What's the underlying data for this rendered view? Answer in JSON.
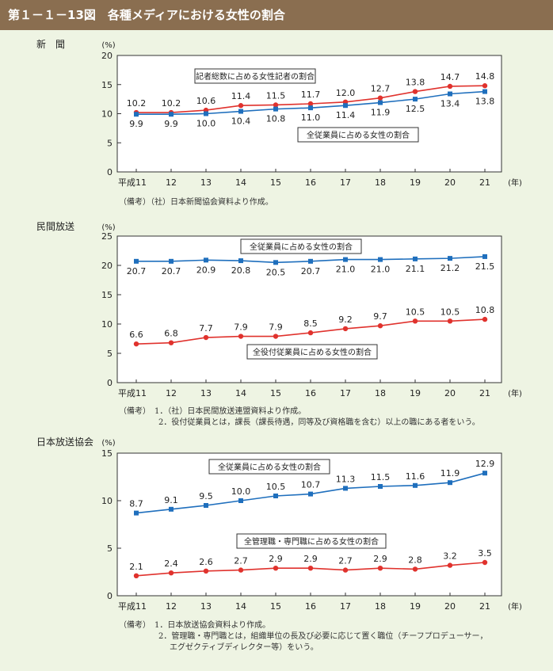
{
  "figure_title": "第１－１－13図　各種メディアにおける女性の割合",
  "chart_data": [
    {
      "type": "line",
      "title": "新　聞",
      "ylabel": "(%)",
      "xlabel": "(年)",
      "categories": [
        "平成11",
        "12",
        "13",
        "14",
        "15",
        "16",
        "17",
        "18",
        "19",
        "20",
        "21"
      ],
      "ylim": [
        0,
        20
      ],
      "yticks": [
        0,
        5,
        10,
        15,
        20
      ],
      "grid": false,
      "series": [
        {
          "name": "記者総数に占める女性記者の割合",
          "color": "#e0322d",
          "marker": "circle",
          "values": [
            10.2,
            10.2,
            10.6,
            11.4,
            11.5,
            11.7,
            12.0,
            12.7,
            13.8,
            14.7,
            14.8
          ],
          "value_labels": [
            "10.2",
            "10.2",
            "10.6",
            "11.4",
            "11.5",
            "11.7",
            "12.0",
            "12.7",
            "13.8",
            "14.7",
            "14.8"
          ]
        },
        {
          "name": "全従業員に占める女性の割合",
          "color": "#1f6fbd",
          "marker": "square",
          "values": [
            9.9,
            9.9,
            10.0,
            10.4,
            10.8,
            11.0,
            11.4,
            11.9,
            12.5,
            13.4,
            13.8
          ],
          "value_labels": [
            "9.9",
            "9.9",
            "10.0",
            "10.4",
            "10.8",
            "11.0",
            "11.4",
            "11.9",
            "12.5",
            "13.4",
            "13.8"
          ]
        }
      ],
      "notes": [
        "（備考）（社）日本新聞協会資料より作成。"
      ]
    },
    {
      "type": "line",
      "title": "民間放送",
      "ylabel": "(%)",
      "xlabel": "(年)",
      "categories": [
        "平成11",
        "12",
        "13",
        "14",
        "15",
        "16",
        "17",
        "18",
        "19",
        "20",
        "21"
      ],
      "ylim": [
        0,
        25
      ],
      "yticks": [
        0,
        5,
        10,
        15,
        20,
        25
      ],
      "grid": false,
      "series": [
        {
          "name": "全従業員に占める女性の割合",
          "color": "#1f6fbd",
          "marker": "square",
          "values": [
            20.7,
            20.7,
            20.9,
            20.8,
            20.5,
            20.7,
            21.0,
            21.0,
            21.1,
            21.2,
            21.5
          ],
          "value_labels": [
            "20.7",
            "20.7",
            "20.9",
            "20.8",
            "20.5",
            "20.7",
            "21.0",
            "21.0",
            "21.1",
            "21.2",
            "21.5"
          ]
        },
        {
          "name": "全役付従業員に占める女性の割合",
          "color": "#e0322d",
          "marker": "circle",
          "values": [
            6.6,
            6.8,
            7.7,
            7.9,
            7.9,
            8.5,
            9.2,
            9.7,
            10.5,
            10.5,
            10.8
          ],
          "value_labels": [
            "6.6",
            "6.8",
            "7.7",
            "7.9",
            "7.9",
            "8.5",
            "9.2",
            "9.7",
            "10.5",
            "10.5",
            "10.8"
          ]
        }
      ],
      "notes": [
        "（備考）　1．（社）日本民間放送連盟資料より作成。",
        "2．役付従業員とは，課長（課長待遇，同等及び資格職を含む）以上の職にある者をいう。"
      ]
    },
    {
      "type": "line",
      "title": "日本放送協会",
      "ylabel": "(%)",
      "xlabel": "(年)",
      "categories": [
        "平成11",
        "12",
        "13",
        "14",
        "15",
        "16",
        "17",
        "18",
        "19",
        "20",
        "21"
      ],
      "ylim": [
        0,
        15
      ],
      "yticks": [
        0,
        5,
        10,
        15
      ],
      "grid": false,
      "series": [
        {
          "name": "全従業員に占める女性の割合",
          "color": "#1f6fbd",
          "marker": "square",
          "values": [
            8.7,
            9.1,
            9.5,
            10.0,
            10.5,
            10.7,
            11.3,
            11.5,
            11.6,
            11.9,
            12.9
          ],
          "value_labels": [
            "8.7",
            "9.1",
            "9.5",
            "10.0",
            "10.5",
            "10.7",
            "11.3",
            "11.5",
            "11.6",
            "11.9",
            "12.9"
          ]
        },
        {
          "name": "全管理職・専門職に占める女性の割合",
          "color": "#e0322d",
          "marker": "circle",
          "values": [
            2.1,
            2.4,
            2.6,
            2.7,
            2.9,
            2.9,
            2.7,
            2.9,
            2.8,
            3.2,
            3.5
          ],
          "value_labels": [
            "2.1",
            "2.4",
            "2.6",
            "2.7",
            "2.9",
            "2.9",
            "2.7",
            "2.9",
            "2.8",
            "3.2",
            "3.5"
          ]
        }
      ],
      "notes": [
        "（備考）　1．日本放送協会資料より作成。",
        "2．管理職・専門職とは，組織単位の長及び必要に応じて置く職位（チーフプロデューサー，",
        "エグゼクティブディレクター等）をいう。"
      ]
    }
  ]
}
